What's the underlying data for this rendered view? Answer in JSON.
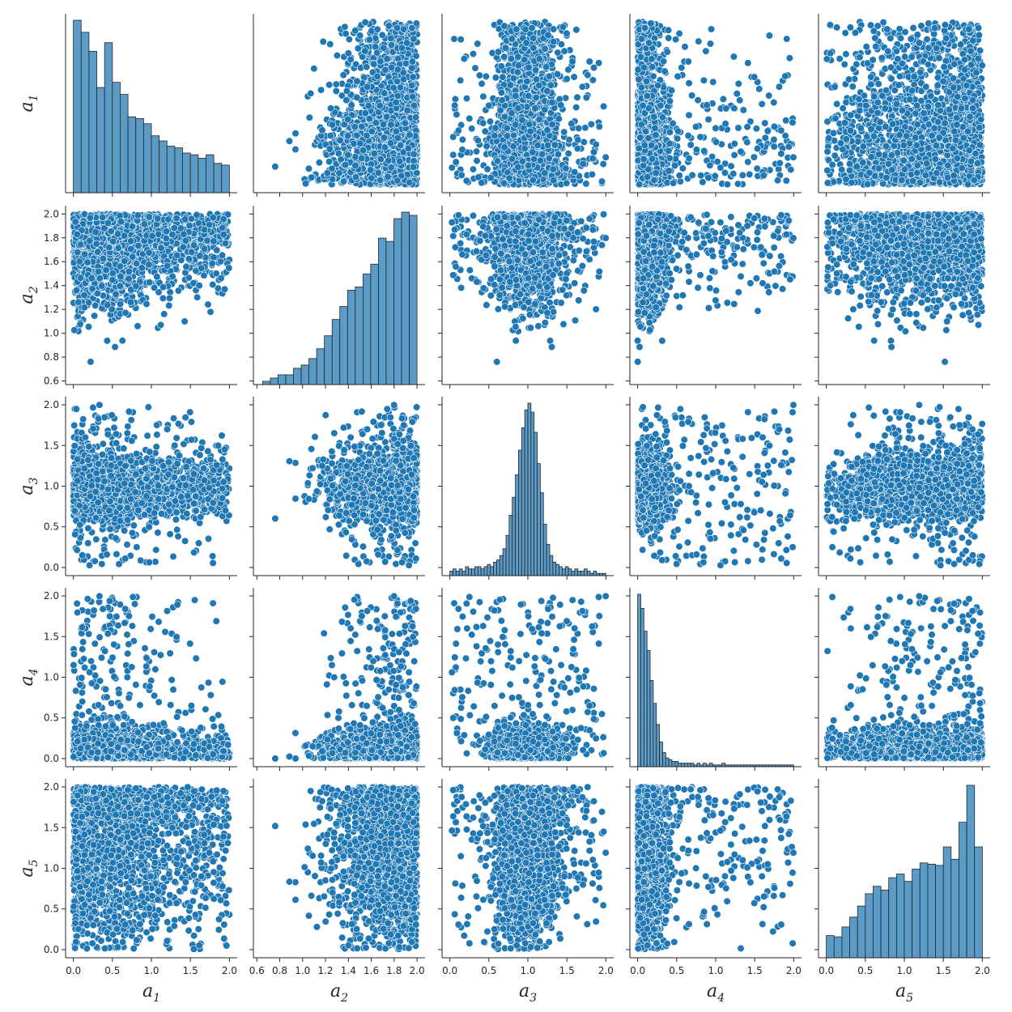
{
  "chart_data": {
    "type": "scatter",
    "variables": [
      "a1",
      "a2",
      "a3",
      "a4",
      "a5"
    ],
    "axis_labels": [
      {
        "base": "a",
        "sub": "1"
      },
      {
        "base": "a",
        "sub": "2"
      },
      {
        "base": "a",
        "sub": "3"
      },
      {
        "base": "a",
        "sub": "4"
      },
      {
        "base": "a",
        "sub": "5"
      }
    ],
    "ranges": {
      "a1": [
        -0.1,
        2.1
      ],
      "a2": [
        0.57,
        2.07
      ],
      "a3": [
        -0.1,
        2.1
      ],
      "a4": [
        -0.1,
        2.1
      ],
      "a5": [
        -0.1,
        2.1
      ]
    },
    "ticks": {
      "a1": [
        "0.0",
        "0.5",
        "1.0",
        "1.5",
        "2.0"
      ],
      "a2": [
        "0.6",
        "0.8",
        "1.0",
        "1.2",
        "1.4",
        "1.6",
        "1.8",
        "2.0"
      ],
      "a3": [
        "0.0",
        "0.5",
        "1.0",
        "1.5",
        "2.0"
      ],
      "a4": [
        "0.0",
        "0.5",
        "1.0",
        "1.5",
        "2.0"
      ],
      "a5": [
        "0.0",
        "0.5",
        "1.0",
        "1.5",
        "2.0"
      ]
    },
    "histograms": {
      "a1": {
        "edges": [
          0.0,
          0.1,
          0.2,
          0.3,
          0.4,
          0.5,
          0.6,
          0.7,
          0.8,
          0.9,
          1.0,
          1.1,
          1.2,
          1.3,
          1.4,
          1.5,
          1.6,
          1.7,
          1.8,
          1.9,
          2.0
        ],
        "counts": [
          100,
          93,
          82,
          61,
          87,
          64,
          57,
          44,
          43,
          40,
          33,
          30,
          27,
          26,
          23,
          22,
          20,
          22,
          17,
          16
        ]
      },
      "a2": {
        "edges": [
          0.65,
          0.718,
          0.785,
          0.853,
          0.92,
          0.988,
          1.055,
          1.123,
          1.19,
          1.258,
          1.325,
          1.393,
          1.46,
          1.528,
          1.595,
          1.663,
          1.73,
          1.798,
          1.865,
          1.933,
          2.0
        ],
        "counts": [
          1,
          2,
          3,
          3,
          5,
          6,
          8,
          11,
          15,
          20,
          24,
          29,
          30,
          34,
          37,
          45,
          44,
          51,
          53,
          52
        ]
      },
      "a3": {
        "edges": [
          0.0,
          0.04,
          0.08,
          0.12,
          0.16,
          0.2,
          0.24,
          0.28,
          0.32,
          0.36,
          0.4,
          0.44,
          0.48,
          0.52,
          0.56,
          0.6,
          0.64,
          0.68,
          0.72,
          0.76,
          0.8,
          0.84,
          0.88,
          0.92,
          0.96,
          1.0,
          1.04,
          1.08,
          1.12,
          1.16,
          1.2,
          1.24,
          1.28,
          1.32,
          1.36,
          1.4,
          1.44,
          1.48,
          1.52,
          1.56,
          1.6,
          1.64,
          1.68,
          1.72,
          1.76,
          1.8,
          1.84,
          1.88,
          1.92,
          1.96,
          2.0
        ],
        "counts": [
          2,
          3,
          2,
          3,
          2,
          4,
          3,
          3,
          4,
          4,
          3,
          4,
          5,
          4,
          6,
          7,
          9,
          12,
          18,
          27,
          35,
          45,
          56,
          66,
          74,
          77,
          73,
          64,
          50,
          37,
          23,
          14,
          9,
          6,
          5,
          4,
          3,
          4,
          3,
          2,
          3,
          2,
          2,
          3,
          2,
          1,
          2,
          1,
          1,
          1
        ]
      },
      "a4": {
        "edges": [
          0.0,
          0.04,
          0.08,
          0.12,
          0.16,
          0.2,
          0.24,
          0.28,
          0.32,
          0.36,
          0.4,
          0.44,
          0.48,
          0.52,
          0.56,
          0.6,
          0.64,
          0.68,
          0.72,
          0.76,
          0.8,
          0.84,
          0.88,
          0.92,
          0.96,
          1.0,
          1.04,
          1.08,
          1.12,
          1.16,
          1.2,
          1.24,
          1.28,
          1.32,
          1.36,
          1.4,
          1.44,
          1.48,
          1.52,
          1.56,
          1.6,
          1.64,
          1.68,
          1.72,
          1.76,
          1.8,
          1.84,
          1.88,
          1.92,
          1.96,
          2.0
        ],
        "counts": [
          98,
          90,
          77,
          66,
          49,
          36,
          24,
          14,
          8,
          5,
          4,
          3,
          3,
          2,
          2,
          2,
          2,
          2,
          1,
          2,
          1,
          2,
          1,
          2,
          1,
          1,
          1,
          2,
          1,
          1,
          1,
          1,
          1,
          1,
          1,
          1,
          1,
          1,
          1,
          1,
          1,
          1,
          1,
          1,
          1,
          1,
          1,
          1,
          1,
          1
        ]
      },
      "a5": {
        "edges": [
          0.0,
          0.1,
          0.2,
          0.3,
          0.4,
          0.5,
          0.6,
          0.7,
          0.8,
          0.9,
          1.0,
          1.1,
          1.2,
          1.3,
          1.4,
          1.5,
          1.6,
          1.7,
          1.8,
          1.9,
          2.0
        ],
        "counts": [
          18,
          17,
          25,
          33,
          42,
          52,
          58,
          55,
          65,
          68,
          62,
          72,
          77,
          76,
          75,
          90,
          80,
          110,
          140,
          90
        ]
      }
    },
    "sample_size": 2000,
    "marker_color": "#1f77b4",
    "marker_edge_color": "#ffffff",
    "histogram_color": "#5b9bc8",
    "histogram_edge_color": "#262626"
  }
}
